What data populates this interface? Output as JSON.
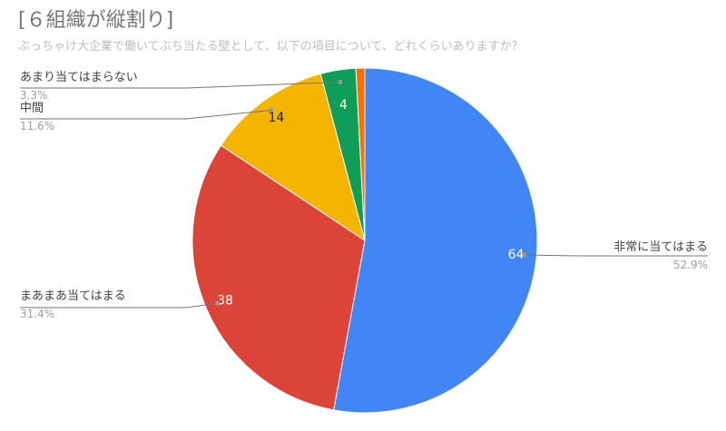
{
  "chart_data": {
    "type": "pie",
    "title": "[６組織が縦割り]",
    "subtitle": "ぶっちゃけ大企業で働いてぶち当たる壁として、以下の項目について、どれくらいありますか？",
    "slices": [
      {
        "label": "非常に当てはまる",
        "value": 64,
        "percent": "52.9%",
        "color": "#4285f4",
        "value_color": "#ffffff"
      },
      {
        "label": "まあまあ当てはまる",
        "value": 38,
        "percent": "31.4%",
        "color": "#db4437",
        "value_color": "#ffffff"
      },
      {
        "label": "中間",
        "value": 14,
        "percent": "11.6%",
        "color": "#f4b400",
        "value_color": "#212121"
      },
      {
        "label": "あまり当てはまらない",
        "value": 4,
        "percent": "3.3%",
        "color": "#0f9d58",
        "value_color": "#ffffff"
      },
      {
        "label": "",
        "value": 1,
        "percent": "",
        "color": "#ff6d01",
        "value_color": "#ffffff"
      }
    ],
    "legend": "none",
    "start_angle": "12 o'clock, clockwise"
  }
}
